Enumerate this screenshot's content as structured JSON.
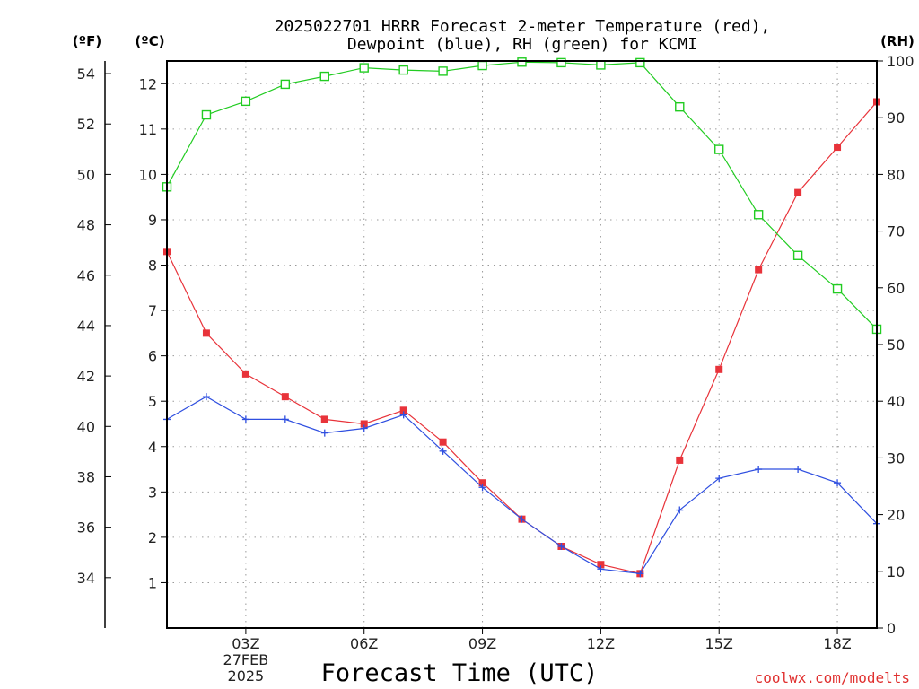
{
  "chart_data": {
    "type": "line",
    "title_line1": "2025022701 HRRR Forecast 2-meter Temperature (red),",
    "title_line2": "Dewpoint (blue), RH (green) for KCMI",
    "xlabel": "Forecast Time (UTC)",
    "credit": "coolwx.com/modelts",
    "unit_f": "(ºF)",
    "unit_c": "(ºC)",
    "unit_rh": "(RH)",
    "x_hours": [
      1,
      2,
      3,
      4,
      5,
      6,
      7,
      8,
      9,
      10,
      11,
      12,
      13,
      14,
      15,
      16,
      17,
      18,
      19
    ],
    "x_ticks": [
      {
        "hour": 3,
        "label": "03Z",
        "date": "27FEB",
        "year": "2025"
      },
      {
        "hour": 6,
        "label": "06Z"
      },
      {
        "hour": 9,
        "label": "09Z"
      },
      {
        "hour": 12,
        "label": "12Z"
      },
      {
        "hour": 15,
        "label": "15Z"
      },
      {
        "hour": 18,
        "label": "18Z"
      }
    ],
    "xlim": [
      1,
      19
    ],
    "c_ylim": [
      0,
      12.5
    ],
    "c_ticks": [
      "1",
      "2",
      "3",
      "4",
      "5",
      "6",
      "7",
      "8",
      "9",
      "10",
      "11",
      "12"
    ],
    "f_ticks": [
      "34",
      "36",
      "38",
      "40",
      "42",
      "44",
      "46",
      "48",
      "50",
      "52",
      "54"
    ],
    "rh_ylim": [
      0,
      100
    ],
    "rh_ticks": [
      "0",
      "10",
      "20",
      "30",
      "40",
      "50",
      "60",
      "70",
      "80",
      "90",
      "100"
    ],
    "grid": true,
    "series": [
      {
        "name": "Temperature (red)",
        "axis": "c",
        "color": "#e8333a",
        "marker": "filled-square",
        "values": [
          8.3,
          6.5,
          5.6,
          5.1,
          4.6,
          4.5,
          4.8,
          4.1,
          3.2,
          2.4,
          1.8,
          1.4,
          1.2,
          3.7,
          5.7,
          7.9,
          9.6,
          10.6,
          11.6
        ]
      },
      {
        "name": "Dewpoint (blue)",
        "axis": "c",
        "color": "#2f4fe0",
        "marker": "plus",
        "values": [
          4.6,
          5.1,
          4.6,
          4.6,
          4.3,
          4.4,
          4.7,
          3.9,
          3.1,
          2.4,
          1.8,
          1.3,
          1.2,
          2.6,
          3.3,
          3.5,
          3.5,
          3.2,
          2.3
        ]
      },
      {
        "name": "RH (green)",
        "axis": "rh",
        "color": "#22cc22",
        "marker": "open-square",
        "values": [
          77.8,
          90.5,
          92.9,
          95.9,
          97.3,
          98.8,
          98.4,
          98.2,
          99.2,
          99.8,
          99.7,
          99.3,
          99.7,
          91.9,
          84.4,
          72.9,
          65.7,
          59.8,
          52.7
        ]
      }
    ]
  }
}
